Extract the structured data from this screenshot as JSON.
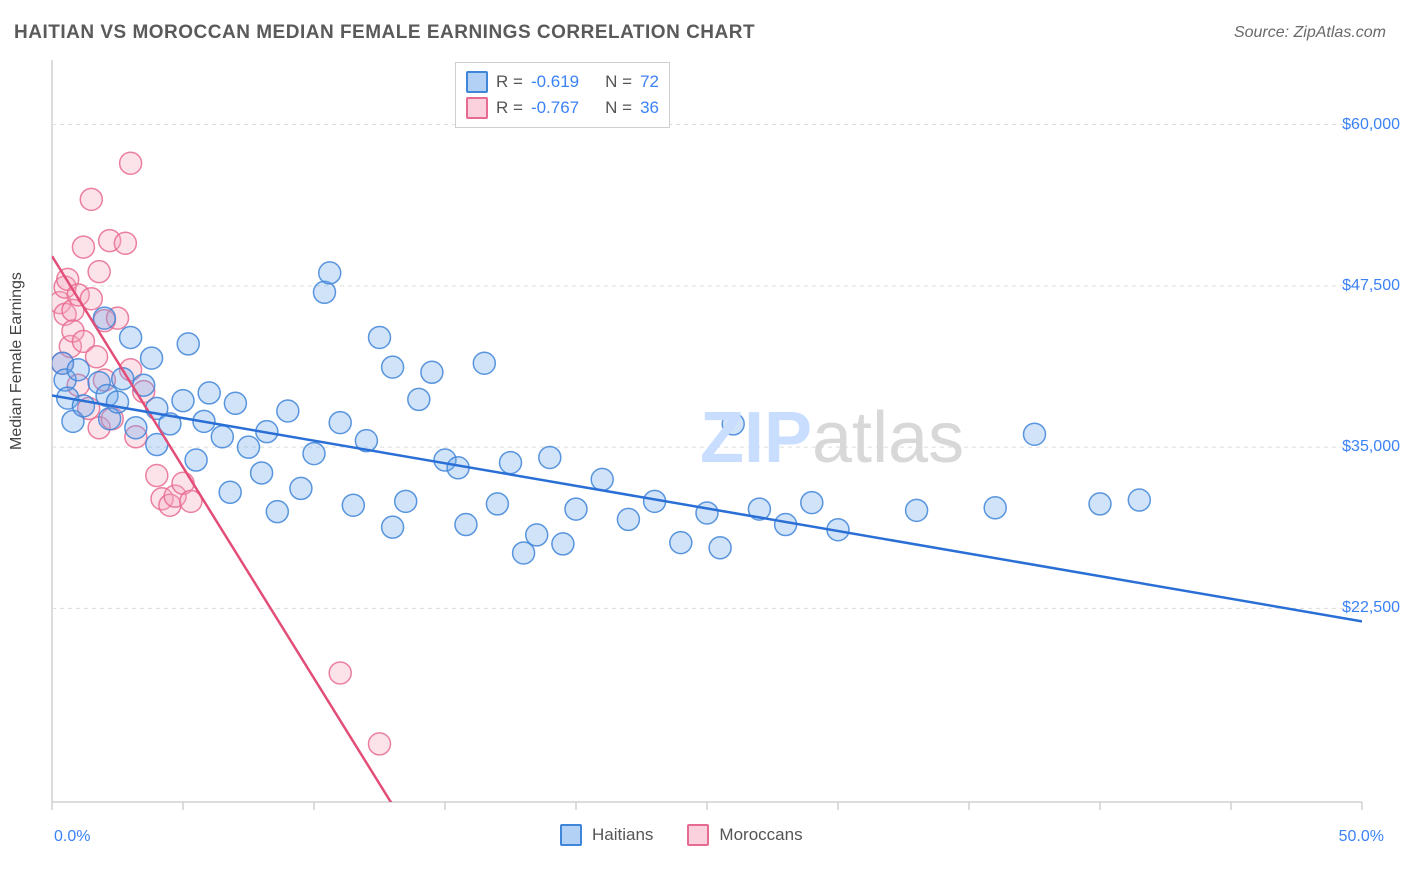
{
  "title": "HAITIAN VS MOROCCAN MEDIAN FEMALE EARNINGS CORRELATION CHART",
  "source": "Source: ZipAtlas.com",
  "ylabel": "Median Female Earnings",
  "watermark": {
    "zip": "ZIP",
    "atlas": "atlas",
    "zip_color": "#c9deff",
    "atlas_color": "#d8d8d8",
    "fontsize": 72
  },
  "chart": {
    "type": "scatter",
    "background_color": "#ffffff",
    "plot_border_color": "#d0d0d0",
    "grid_color": "#dcdcdc",
    "grid_dash": "4,4",
    "marker_radius": 11,
    "marker_fill_opacity": 0.32,
    "marker_stroke_opacity": 0.85,
    "trend_line_width": 2.5,
    "label_fontsize": 16,
    "label_color_axis": "#3b82f6",
    "xlim": [
      0,
      50
    ],
    "ylim": [
      7500,
      65000
    ],
    "xticks": [
      0,
      5,
      10,
      15,
      20,
      25,
      30,
      35,
      40,
      45,
      50
    ],
    "xtick_labels": {
      "0": "0.0%",
      "50": "50.0%"
    },
    "yticks": [
      22500,
      35000,
      47500,
      60000
    ],
    "ytick_labels": [
      "$22,500",
      "$35,000",
      "$47,500",
      "$60,000"
    ]
  },
  "legend_stats": {
    "series1": {
      "R_label": "R =",
      "R": "-0.619",
      "N_label": "N =",
      "N": "72"
    },
    "series2": {
      "R_label": "R =",
      "R": "-0.767",
      "N_label": "N =",
      "N": "36"
    }
  },
  "bottom_legend": {
    "series1": "Haitians",
    "series2": "Moroccans"
  },
  "series": {
    "haitians": {
      "color": "#6ea8ec",
      "stroke": "#3f85d8",
      "line_color": "#2a6fd6",
      "trend": {
        "x1": 0,
        "y1": 39000,
        "x2": 50,
        "y2": 21500
      },
      "points": [
        [
          0.4,
          41500
        ],
        [
          0.5,
          40200
        ],
        [
          0.6,
          38800
        ],
        [
          0.8,
          37000
        ],
        [
          1.0,
          41000
        ],
        [
          1.2,
          38200
        ],
        [
          1.8,
          40000
        ],
        [
          2.0,
          45000
        ],
        [
          2.1,
          39000
        ],
        [
          2.2,
          37200
        ],
        [
          2.5,
          38500
        ],
        [
          2.7,
          40300
        ],
        [
          3.0,
          43500
        ],
        [
          3.2,
          36500
        ],
        [
          3.5,
          39800
        ],
        [
          3.8,
          41900
        ],
        [
          4.0,
          35200
        ],
        [
          4.0,
          38000
        ],
        [
          4.5,
          36800
        ],
        [
          5.0,
          38600
        ],
        [
          5.2,
          43000
        ],
        [
          5.5,
          34000
        ],
        [
          5.8,
          37000
        ],
        [
          6.0,
          39200
        ],
        [
          6.5,
          35800
        ],
        [
          6.8,
          31500
        ],
        [
          7.0,
          38400
        ],
        [
          7.5,
          35000
        ],
        [
          8.0,
          33000
        ],
        [
          8.2,
          36200
        ],
        [
          8.6,
          30000
        ],
        [
          9.0,
          37800
        ],
        [
          9.5,
          31800
        ],
        [
          10.0,
          34500
        ],
        [
          10.4,
          47000
        ],
        [
          10.6,
          48500
        ],
        [
          11.0,
          36900
        ],
        [
          11.5,
          30500
        ],
        [
          12.0,
          35500
        ],
        [
          12.5,
          43500
        ],
        [
          13.0,
          28800
        ],
        [
          13.0,
          41200
        ],
        [
          13.5,
          30800
        ],
        [
          14.0,
          38700
        ],
        [
          14.5,
          40800
        ],
        [
          15.0,
          34000
        ],
        [
          15.5,
          33400
        ],
        [
          15.8,
          29000
        ],
        [
          16.5,
          41500
        ],
        [
          17.0,
          30600
        ],
        [
          17.5,
          33800
        ],
        [
          18.0,
          26800
        ],
        [
          18.5,
          28200
        ],
        [
          19.0,
          34200
        ],
        [
          19.5,
          27500
        ],
        [
          20.0,
          30200
        ],
        [
          21.0,
          32500
        ],
        [
          22.0,
          29400
        ],
        [
          23.0,
          30800
        ],
        [
          24.0,
          27600
        ],
        [
          25.0,
          29900
        ],
        [
          25.5,
          27200
        ],
        [
          26.0,
          36800
        ],
        [
          27.0,
          30200
        ],
        [
          28.0,
          29000
        ],
        [
          29.0,
          30700
        ],
        [
          30.0,
          28600
        ],
        [
          33.0,
          30100
        ],
        [
          36.0,
          30300
        ],
        [
          37.5,
          36000
        ],
        [
          40.0,
          30600
        ],
        [
          41.5,
          30900
        ]
      ]
    },
    "moroccans": {
      "color": "#f6a8bd",
      "stroke": "#e76b90",
      "line_color": "#e24e78",
      "trend": {
        "x1": 0,
        "y1": 49800,
        "x2": 14,
        "y2": 4000
      },
      "points": [
        [
          0.3,
          46200
        ],
        [
          0.4,
          41500
        ],
        [
          0.5,
          47400
        ],
        [
          0.5,
          45300
        ],
        [
          0.6,
          48000
        ],
        [
          0.7,
          42800
        ],
        [
          0.8,
          45600
        ],
        [
          0.8,
          44000
        ],
        [
          1.0,
          46800
        ],
        [
          1.0,
          39800
        ],
        [
          1.2,
          50500
        ],
        [
          1.2,
          43200
        ],
        [
          1.4,
          38000
        ],
        [
          1.5,
          54200
        ],
        [
          1.5,
          46500
        ],
        [
          1.7,
          42000
        ],
        [
          1.8,
          36500
        ],
        [
          1.8,
          48600
        ],
        [
          2.0,
          40200
        ],
        [
          2.0,
          44800
        ],
        [
          2.2,
          51000
        ],
        [
          2.3,
          37200
        ],
        [
          2.5,
          45000
        ],
        [
          2.8,
          50800
        ],
        [
          3.0,
          41000
        ],
        [
          3.0,
          57000
        ],
        [
          3.2,
          35800
        ],
        [
          3.5,
          39300
        ],
        [
          4.0,
          32800
        ],
        [
          4.2,
          31000
        ],
        [
          4.5,
          30500
        ],
        [
          4.7,
          31200
        ],
        [
          5.0,
          32200
        ],
        [
          5.3,
          30800
        ],
        [
          11.0,
          17500
        ],
        [
          12.5,
          12000
        ]
      ]
    }
  }
}
